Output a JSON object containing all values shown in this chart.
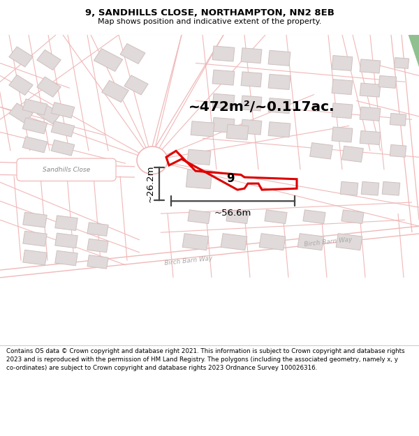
{
  "title_line1": "9, SANDHILLS CLOSE, NORTHAMPTON, NN2 8EB",
  "title_line2": "Map shows position and indicative extent of the property.",
  "area_text": "~472m²/~0.117ac.",
  "width_label": "~56.6m",
  "height_label": "~26.2m",
  "property_number": "9",
  "footer_text": "Contains OS data © Crown copyright and database right 2021. This information is subject to Crown copyright and database rights 2023 and is reproduced with the permission of HM Land Registry. The polygons (including the associated geometry, namely x, y co-ordinates) are subject to Crown copyright and database rights 2023 Ordnance Survey 100026316.",
  "map_bg": "#ffffff",
  "road_line_color": "#f0b8b8",
  "building_fill": "#e0dada",
  "building_edge": "#d0c0c0",
  "property_color": "#dd0000",
  "dim_color": "#444444",
  "street1_label": "Sandhills Close",
  "street2_label": "Birch Barn Way",
  "header_bg": "#ffffff",
  "footer_bg": "#ffffff",
  "green_patch": "#90c090"
}
